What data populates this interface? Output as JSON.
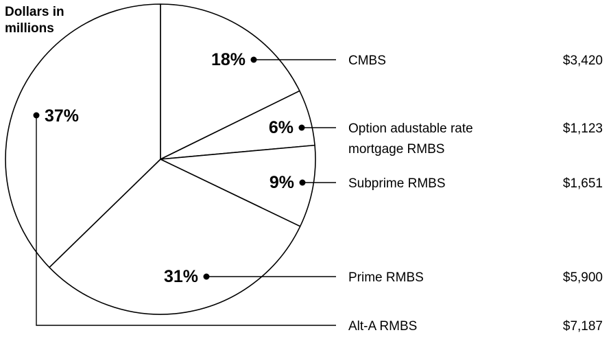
{
  "chart_data": {
    "type": "pie",
    "unit_label_lines": [
      "Dollars in",
      "millions"
    ],
    "slices": [
      {
        "label_lines": [
          "CMBS"
        ],
        "percent_label": "18%",
        "value": 3420,
        "value_label": "$3,420"
      },
      {
        "label_lines": [
          "Option adustable rate",
          "mortgage RMBS"
        ],
        "percent_label": "6%",
        "value": 1123,
        "value_label": "$1,123"
      },
      {
        "label_lines": [
          "Subprime RMBS"
        ],
        "percent_label": "9%",
        "value": 1651,
        "value_label": "$1,651"
      },
      {
        "label_lines": [
          "Prime RMBS"
        ],
        "percent_label": "31%",
        "value": 5900,
        "value_label": "$5,900"
      },
      {
        "label_lines": [
          "Alt-A RMBS"
        ],
        "percent_label": "37%",
        "value": 7187,
        "value_label": "$7,187"
      }
    ],
    "colors": {
      "fill": "#ffffff",
      "stroke": "#000000"
    }
  }
}
